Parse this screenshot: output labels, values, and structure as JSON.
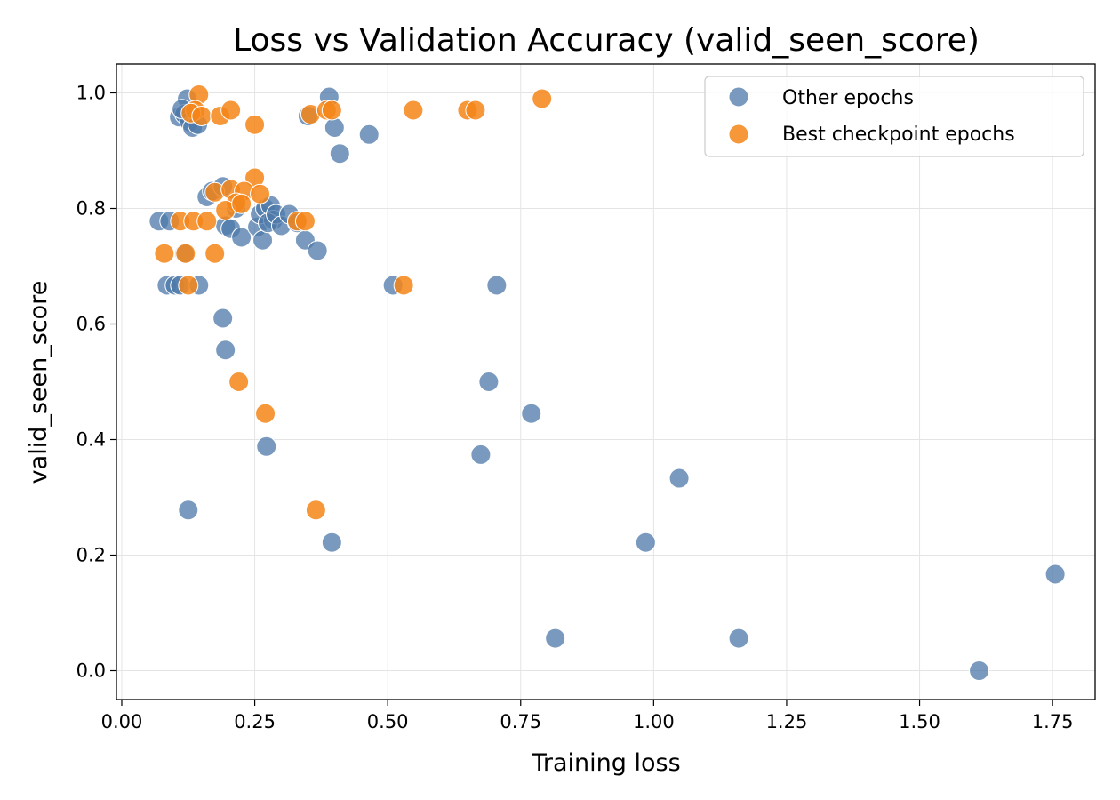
{
  "chart_data": {
    "type": "scatter",
    "title": "Loss vs Validation Accuracy (valid_seen_score)",
    "xlabel": "Training loss",
    "ylabel": "valid_seen_score",
    "xlim": [
      -0.01,
      1.83
    ],
    "ylim": [
      -0.05,
      1.05
    ],
    "xticks": [
      0.0,
      0.25,
      0.5,
      0.75,
      1.0,
      1.25,
      1.5,
      1.75
    ],
    "xtick_labels": [
      "0.00",
      "0.25",
      "0.50",
      "0.75",
      "1.00",
      "1.25",
      "1.50",
      "1.75"
    ],
    "yticks": [
      0.0,
      0.2,
      0.4,
      0.6,
      0.8,
      1.0
    ],
    "ytick_labels": [
      "0.0",
      "0.2",
      "0.4",
      "0.6",
      "0.8",
      "1.0"
    ],
    "grid": true,
    "legend_position": "top-right",
    "series": [
      {
        "name": "Other epochs",
        "color": "#4c78a8",
        "points": [
          [
            0.123,
            0.99
          ],
          [
            0.108,
            0.958
          ],
          [
            0.118,
            0.963
          ],
          [
            0.127,
            0.95
          ],
          [
            0.133,
            0.94
          ],
          [
            0.143,
            0.945
          ],
          [
            0.113,
            0.972
          ],
          [
            0.39,
            0.993
          ],
          [
            0.35,
            0.96
          ],
          [
            0.4,
            0.94
          ],
          [
            0.41,
            0.895
          ],
          [
            0.465,
            0.928
          ],
          [
            0.07,
            0.778
          ],
          [
            0.09,
            0.778
          ],
          [
            0.16,
            0.82
          ],
          [
            0.17,
            0.83
          ],
          [
            0.19,
            0.838
          ],
          [
            0.195,
            0.77
          ],
          [
            0.205,
            0.765
          ],
          [
            0.215,
            0.8
          ],
          [
            0.225,
            0.75
          ],
          [
            0.255,
            0.768
          ],
          [
            0.265,
            0.745
          ],
          [
            0.26,
            0.79
          ],
          [
            0.27,
            0.8
          ],
          [
            0.28,
            0.805
          ],
          [
            0.285,
            0.78
          ],
          [
            0.275,
            0.775
          ],
          [
            0.29,
            0.79
          ],
          [
            0.3,
            0.77
          ],
          [
            0.315,
            0.79
          ],
          [
            0.33,
            0.775
          ],
          [
            0.345,
            0.745
          ],
          [
            0.368,
            0.727
          ],
          [
            0.085,
            0.667
          ],
          [
            0.1,
            0.667
          ],
          [
            0.11,
            0.667
          ],
          [
            0.145,
            0.667
          ],
          [
            0.118,
            0.722
          ],
          [
            0.19,
            0.61
          ],
          [
            0.195,
            0.555
          ],
          [
            0.51,
            0.667
          ],
          [
            0.705,
            0.667
          ],
          [
            0.69,
            0.5
          ],
          [
            0.77,
            0.445
          ],
          [
            0.675,
            0.374
          ],
          [
            0.272,
            0.388
          ],
          [
            0.125,
            0.278
          ],
          [
            0.395,
            0.222
          ],
          [
            1.048,
            0.333
          ],
          [
            0.985,
            0.222
          ],
          [
            0.815,
            0.056
          ],
          [
            1.16,
            0.056
          ],
          [
            1.755,
            0.167
          ],
          [
            1.612,
            0.0
          ]
        ]
      },
      {
        "name": "Best checkpoint epochs",
        "color": "#f58518",
        "points": [
          [
            0.145,
            0.997
          ],
          [
            0.138,
            0.97
          ],
          [
            0.13,
            0.965
          ],
          [
            0.15,
            0.96
          ],
          [
            0.185,
            0.96
          ],
          [
            0.205,
            0.97
          ],
          [
            0.25,
            0.945
          ],
          [
            0.355,
            0.963
          ],
          [
            0.385,
            0.97
          ],
          [
            0.395,
            0.97
          ],
          [
            0.548,
            0.97
          ],
          [
            0.65,
            0.97
          ],
          [
            0.665,
            0.97
          ],
          [
            0.79,
            0.99
          ],
          [
            0.25,
            0.853
          ],
          [
            0.175,
            0.828
          ],
          [
            0.205,
            0.833
          ],
          [
            0.23,
            0.83
          ],
          [
            0.26,
            0.825
          ],
          [
            0.215,
            0.81
          ],
          [
            0.195,
            0.797
          ],
          [
            0.225,
            0.808
          ],
          [
            0.11,
            0.778
          ],
          [
            0.135,
            0.778
          ],
          [
            0.16,
            0.778
          ],
          [
            0.33,
            0.778
          ],
          [
            0.345,
            0.778
          ],
          [
            0.08,
            0.722
          ],
          [
            0.12,
            0.722
          ],
          [
            0.175,
            0.722
          ],
          [
            0.125,
            0.667
          ],
          [
            0.53,
            0.667
          ],
          [
            0.22,
            0.5
          ],
          [
            0.27,
            0.445
          ],
          [
            0.365,
            0.278
          ]
        ]
      }
    ]
  }
}
